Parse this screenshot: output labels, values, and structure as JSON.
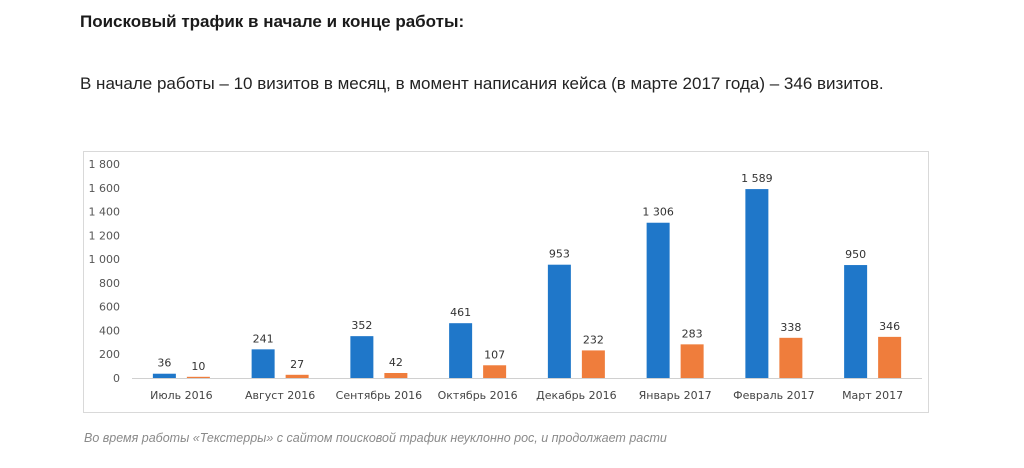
{
  "article": {
    "heading": "Поисковый трафик в начале и конце работы:",
    "intro": "В начале работы – 10 визитов в месяц, в момент написания кейса (в марте 2017 года) – 346 визитов.",
    "caption": "Во время работы «Текстерры» с сайтом поисковой трафик неуклонно рос, и продолжает расти"
  },
  "chart_data": {
    "type": "bar",
    "categories": [
      "Июль 2016",
      "Август 2016",
      "Сентябрь 2016",
      "Октябрь 2016",
      "Декабрь 2016",
      "Январь 2017",
      "Февраль 2017",
      "Март 2017"
    ],
    "series": [
      {
        "values": [
          36,
          241,
          352,
          461,
          953,
          1306,
          1589,
          950
        ],
        "labels": [
          "36",
          "241",
          "352",
          "461",
          "953",
          "1 306",
          "1 589",
          "950"
        ],
        "color": "#1f77c9"
      },
      {
        "values": [
          10,
          27,
          42,
          107,
          232,
          283,
          338,
          346
        ],
        "labels": [
          "10",
          "27",
          "42",
          "107",
          "232",
          "283",
          "338",
          "346"
        ],
        "color": "#ef7d3c"
      }
    ],
    "ylim": [
      0,
      1800
    ],
    "yticks": [
      0,
      200,
      400,
      600,
      800,
      1000,
      1200,
      1400,
      1600,
      1800
    ],
    "ytick_labels": [
      "0",
      "200",
      "400",
      "600",
      "800",
      "1 000",
      "1 200",
      "1 400",
      "1 600",
      "1 800"
    ],
    "grid": false,
    "legend": "none"
  }
}
